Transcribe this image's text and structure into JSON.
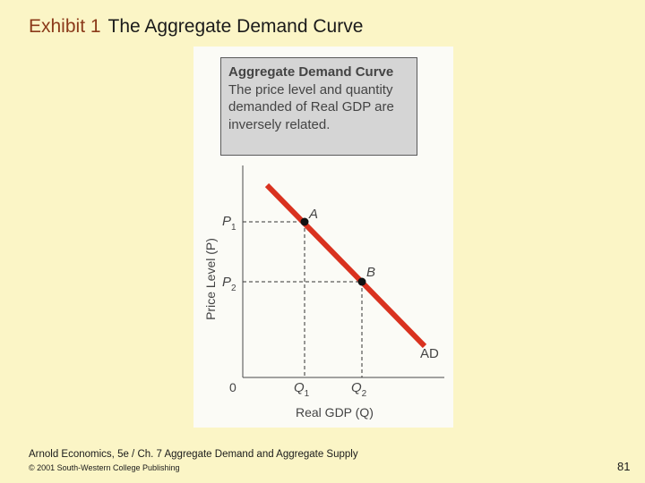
{
  "slide": {
    "exhibit_label": "Exhibit 1",
    "title": "The Aggregate Demand Curve",
    "footer_line1": "Arnold Economics, 5e / Ch. 7 Aggregate Demand and Aggregate Supply",
    "footer_line2": "© 2001 South-Western College Publishing",
    "page_number": "81"
  },
  "infobox": {
    "heading": "Aggregate Demand Curve",
    "body": "The price level and quantity demanded of Real GDP are inversely related."
  },
  "diagram": {
    "y_axis_label": "Price Level (P)",
    "x_axis_label": "Real GDP (Q)",
    "origin_label": "0",
    "curve_label": "AD",
    "curve_color": "#d9321f",
    "points": [
      {
        "label": "A",
        "price": "P",
        "price_sub": "1",
        "quantity": "Q",
        "quantity_sub": "1"
      },
      {
        "label": "B",
        "price": "P",
        "price_sub": "2",
        "quantity": "Q",
        "quantity_sub": "2"
      }
    ]
  }
}
